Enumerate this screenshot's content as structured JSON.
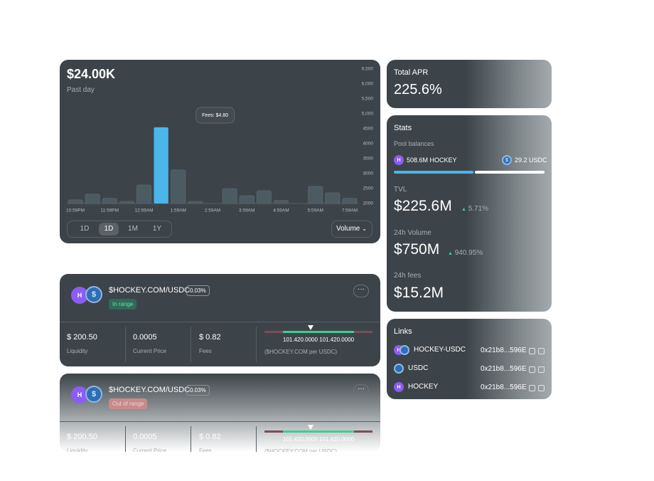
{
  "chart_data": {
    "type": "bar",
    "headline": "$24.00K",
    "subtitle": "Past day",
    "categories": [
      "10:59PM",
      null,
      "11:59PM",
      null,
      "12:59AM",
      null,
      "1:59AM",
      null,
      "2:59AM",
      null,
      "3:59AM",
      null,
      "4:59AM",
      null,
      "5:59AM",
      null,
      "7:59AM"
    ],
    "values": [
      2120,
      2310,
      2170,
      2070,
      2620,
      4550,
      3120,
      2070,
      null,
      2500,
      2260,
      2430,
      2100,
      null,
      2570,
      2360,
      2170
    ],
    "color": "#4c5a62",
    "highlight_color": "#4bb6ea",
    "tooltip": {
      "text": "Fees: $4.80",
      "index": 5
    },
    "ylim": [
      2000,
      6500
    ],
    "yticks": [
      2000,
      2500,
      3000,
      3500,
      4000,
      4500,
      {
        "value": 5000,
        "label": "5,000"
      },
      {
        "value": 5500,
        "label": "5,500"
      },
      {
        "value": 6000,
        "label": "6,000"
      },
      {
        "value": 6500,
        "label": "6,500"
      }
    ],
    "ranges": [
      "1D",
      "1D",
      "1M",
      "1Y"
    ],
    "active_range": 1,
    "metric": "Volume"
  },
  "positions": [
    {
      "icon": "H",
      "pair": "$HOCKEY.COM/USDC",
      "fee": "0.03%",
      "status": "In range",
      "stats": [
        {
          "value": "$ 200.50",
          "label": "Liquidity"
        },
        {
          "value": "0.0005",
          "label": "Current Price"
        },
        {
          "value": "$ 0.82",
          "label": "Fees"
        }
      ],
      "range": "101.420.0000 101.420.0000",
      "range_unit": "($HOCKEY.COM per USDC)"
    },
    {
      "icon": "H",
      "pair": "$HOCKEY.COM/USDC",
      "fee": "0.03%",
      "status": "Out of range",
      "stats": [
        {
          "value": "$ 200.50",
          "label": "Liquidity"
        },
        {
          "value": "0.0005",
          "label": "Current Price"
        },
        {
          "value": "$ 0.82",
          "label": "Fees"
        }
      ],
      "range": "101.420.0000 101.420.0000",
      "range_unit": "($HOCKEY.COM per USDC)"
    }
  ],
  "apr": {
    "label": "Total APR",
    "value": "225.6%"
  },
  "stats": {
    "title": "Stats",
    "pool_label": "Pool balances",
    "icon": "H",
    "balance_a": "508.6M HOCKEY",
    "balance_b": "29.2 USDC",
    "tvl_label": "TVL",
    "tvl": "$225.6M",
    "tvl_change": "5.71%",
    "volume_label": "24h Volume",
    "volume": "$750M",
    "volume_change": "940.95%",
    "fees_label": "24h fees",
    "fees": "$15.2M"
  },
  "links": {
    "title": "Links",
    "rows": [
      {
        "icon": "H",
        "name": "HOCKEY-USDC",
        "address": "0x21b8...596E"
      },
      {
        "name": "USDC",
        "address": "0x21b8...596E"
      },
      {
        "icon": "H",
        "name": "HOCKEY",
        "address": "0x21b8...596E"
      }
    ]
  }
}
